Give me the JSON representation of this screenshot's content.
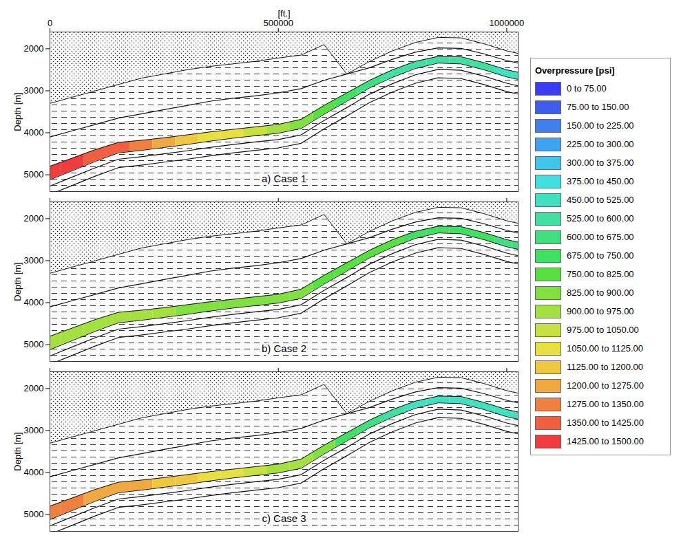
{
  "chart_data": {
    "type": "cross_section",
    "x_label": "[ft.]",
    "y_label": "Depth [m]",
    "xlim": [
      0,
      1025000
    ],
    "xticks": [
      0,
      500000,
      1000000
    ],
    "ylim": [
      1600,
      5400
    ],
    "yticks": [
      2000,
      3000,
      4000,
      5000
    ],
    "x": [
      0,
      50000,
      100000,
      150000,
      200000,
      250000,
      300000,
      350000,
      400000,
      450000,
      500000,
      550000,
      600000,
      650000,
      700000,
      750000,
      800000,
      850000,
      900000,
      950000,
      1000000,
      1025000
    ],
    "layer_top": [
      4800,
      4600,
      4400,
      4230,
      4180,
      4120,
      4050,
      3980,
      3920,
      3860,
      3800,
      3680,
      3350,
      3050,
      2750,
      2500,
      2300,
      2180,
      2190,
      2330,
      2500,
      2560
    ],
    "layer_bottom": [
      5120,
      4900,
      4680,
      4480,
      4420,
      4350,
      4280,
      4200,
      4130,
      4070,
      4010,
      3900,
      3560,
      3250,
      2930,
      2680,
      2470,
      2340,
      2360,
      2500,
      2670,
      2730
    ],
    "overburden_base": [
      3300,
      3150,
      3000,
      2850,
      2700,
      2600,
      2500,
      2420,
      2360,
      2300,
      2220,
      2150,
      1900,
      2600,
      2300,
      2050,
      1850,
      1730,
      1740,
      1880,
      2050,
      2110
    ],
    "horizons": [
      [
        4100,
        3950,
        3800,
        3650,
        3550,
        3450,
        3350,
        3250,
        3180,
        3120,
        3050,
        2950,
        2750,
        2600,
        2450,
        2250,
        2080,
        1980,
        1990,
        2120,
        2280,
        2340
      ],
      [
        5270,
        5050,
        4830,
        4630,
        4570,
        4500,
        4430,
        4350,
        4280,
        4220,
        4160,
        4050,
        3710,
        3400,
        3080,
        2830,
        2620,
        2490,
        2510,
        2650,
        2820,
        2880
      ],
      [
        5470,
        5250,
        5030,
        4830,
        4770,
        4700,
        4630,
        4550,
        4480,
        4420,
        4360,
        4250,
        3910,
        3600,
        3280,
        3030,
        2820,
        2690,
        2710,
        2850,
        3020,
        3080
      ]
    ],
    "cases": [
      {
        "label": "a) Case 1",
        "tick_labels": true,
        "values": [
          1460,
          1440,
          1400,
          1370,
          1300,
          1240,
          1160,
          1090,
          1080,
          1010,
          940,
          870,
          800,
          720,
          650,
          590,
          560,
          550,
          540,
          530,
          520,
          510
        ]
      },
      {
        "label": "b) Case 2",
        "tick_labels": "y",
        "values": [
          940,
          935,
          930,
          920,
          910,
          900,
          890,
          880,
          870,
          860,
          850,
          830,
          810,
          790,
          770,
          750,
          730,
          710,
          690,
          680,
          670,
          660
        ]
      },
      {
        "label": "c) Case 3",
        "tick_labels": "y",
        "values": [
          1290,
          1280,
          1260,
          1230,
          1200,
          1160,
          1130,
          1090,
          1050,
          1010,
          960,
          900,
          830,
          740,
          650,
          570,
          520,
          500,
          490,
          480,
          470,
          460
        ]
      }
    ],
    "color_bar": {
      "title": "Overpressure [psi]",
      "bins": [
        0,
        75,
        150,
        225,
        300,
        375,
        450,
        525,
        600,
        675,
        750,
        825,
        900,
        975,
        1050,
        1125,
        1200,
        1275,
        1350,
        1425,
        1500
      ],
      "labels": [
        "0 to 75.00",
        "75.00 to 150.00",
        "150.00 to 225.00",
        "225.00 to 300.00",
        "300.00 to 375.00",
        "375.00 to 450.00",
        "450.00 to 525.00",
        "525.00 to 600.00",
        "600.00 to 675.00",
        "675.00 to 750.00",
        "750.00 to 825.00",
        "825.00 to 900.00",
        "900.00 to 975.00",
        "975.00 to 1050.00",
        "1050.00 to 1125.00",
        "1125.00 to 1200.00",
        "1200.00 to 1275.00",
        "1275.00 to 1350.00",
        "1350.00 to 1425.00",
        "1425.00 to 1500.00"
      ],
      "colors": [
        "#3c3cf5",
        "#3d5cf0",
        "#3f7fee",
        "#3fa3ee",
        "#3fc6e8",
        "#40e0e0",
        "#40e0c0",
        "#40e0a0",
        "#40e080",
        "#40e060",
        "#58e040",
        "#80e040",
        "#a4e040",
        "#c8e040",
        "#e8e040",
        "#f0c840",
        "#f0a840",
        "#f08040",
        "#f06040",
        "#f03c3c"
      ]
    }
  }
}
